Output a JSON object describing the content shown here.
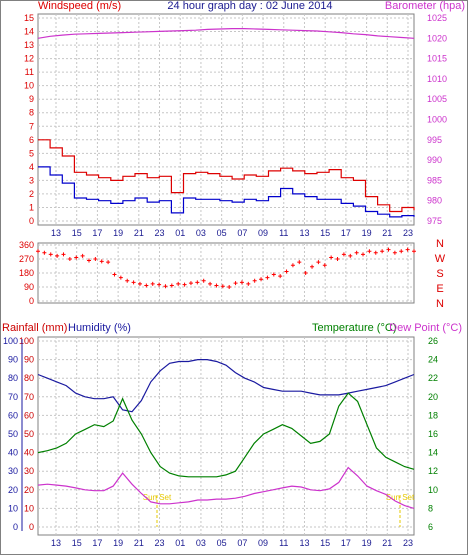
{
  "header": {
    "left_label": "Windspeed (m/s)",
    "center_label": "24 hour graph day : 02 June 2014",
    "right_label": "Barometer (hpa)"
  },
  "colors": {
    "wind": "#dd0000",
    "gust": "#dd0000",
    "avgwind": "#0000cc",
    "baro": "#cc33cc",
    "dir": "#ff0000",
    "humidity": "#1a1aa0",
    "temp": "#008000",
    "dew": "#cc33cc",
    "rain": "#cc0000",
    "grid": "#c6c6c6",
    "sun": "#e6c800"
  },
  "chart_data": [
    {
      "type": "line",
      "name": "wind-barometer",
      "title": "24 hour graph day : 02 June 2014",
      "x_ticks": [
        "13",
        "15",
        "17",
        "19",
        "21",
        "23",
        "01",
        "03",
        "05",
        "07",
        "09",
        "11",
        "13",
        "15",
        "17",
        "19",
        "21",
        "23"
      ],
      "y_left": {
        "label": "Windspeed (m/s)",
        "range": [
          0,
          15
        ],
        "ticks": [
          0,
          1,
          2,
          3,
          4,
          5,
          6,
          7,
          8,
          9,
          10,
          11,
          12,
          13,
          14,
          15
        ]
      },
      "y_right": {
        "label": "Barometer (hpa)",
        "range": [
          975,
          1025
        ],
        "ticks": [
          975,
          980,
          985,
          990,
          995,
          1000,
          1005,
          1010,
          1015,
          1020,
          1025
        ]
      },
      "series": [
        {
          "key": "gust",
          "axis": "left",
          "values": [
            6.0,
            5.4,
            4.8,
            3.6,
            3.4,
            3.2,
            3.0,
            3.3,
            3.5,
            3.2,
            3.3,
            2.1,
            3.5,
            3.6,
            3.5,
            3.3,
            3.1,
            3.4,
            3.3,
            3.7,
            3.9,
            3.7,
            3.5,
            3.6,
            3.8,
            3.2,
            3.0,
            1.8,
            1.2,
            0.7,
            1.0,
            0.8
          ]
        },
        {
          "key": "avgwind",
          "axis": "left",
          "values": [
            4.0,
            3.4,
            2.8,
            1.7,
            1.6,
            1.5,
            1.3,
            1.5,
            1.7,
            1.4,
            1.5,
            0.6,
            1.7,
            1.6,
            1.6,
            1.5,
            1.4,
            1.6,
            1.5,
            1.8,
            2.4,
            2.0,
            1.8,
            1.6,
            1.6,
            1.3,
            1.1,
            0.7,
            0.5,
            0.3,
            0.4,
            0.3
          ]
        },
        {
          "key": "baro",
          "axis": "right",
          "values": [
            1020.0,
            1020.5,
            1020.8,
            1021.0,
            1021.1,
            1021.2,
            1021.3,
            1021.4,
            1021.5,
            1021.6,
            1021.7,
            1021.8,
            1021.9,
            1022.0,
            1022.2,
            1022.3,
            1022.4,
            1022.4,
            1022.3,
            1022.2,
            1022.1,
            1022.0,
            1021.9,
            1021.8,
            1021.6,
            1021.4,
            1021.1,
            1020.9,
            1020.6,
            1020.4,
            1020.2,
            1020.0
          ]
        }
      ]
    },
    {
      "type": "scatter",
      "name": "wind-direction",
      "y_range": [
        0,
        360
      ],
      "y_ticks": [
        0,
        90,
        180,
        270,
        360
      ],
      "compass_labels": [
        "N",
        "W",
        "S",
        "E",
        "N"
      ],
      "series": [
        {
          "key": "dir",
          "values": [
            320,
            310,
            300,
            290,
            300,
            270,
            280,
            290,
            260,
            270,
            255,
            250,
            170,
            150,
            130,
            120,
            110,
            100,
            110,
            105,
            95,
            100,
            110,
            105,
            115,
            120,
            130,
            110,
            100,
            95,
            90,
            115,
            120,
            110,
            130,
            140,
            150,
            170,
            160,
            190,
            230,
            250,
            180,
            220,
            250,
            230,
            280,
            270,
            300,
            290,
            310,
            300,
            320,
            310,
            320,
            330,
            310,
            320,
            330,
            320
          ]
        }
      ]
    },
    {
      "type": "line",
      "name": "rain-humidity-temperature",
      "y_left_rain": {
        "label": "Rainfall (mm)",
        "range": [
          0,
          100
        ],
        "ticks": [
          0,
          10,
          20,
          30,
          40,
          50,
          60,
          70,
          80,
          90,
          100
        ]
      },
      "y_left_humidity": {
        "label": "Humidity (%)",
        "range": [
          0,
          100
        ],
        "ticks": [
          0,
          10,
          20,
          30,
          40,
          50,
          60,
          70,
          80,
          90,
          100
        ]
      },
      "y_right": {
        "label": "Temperature (°C)",
        "label2": "Dew Point (°C)",
        "range": [
          6,
          26
        ],
        "ticks": [
          6,
          8,
          10,
          12,
          14,
          16,
          18,
          20,
          22,
          24,
          26
        ]
      },
      "annotations": [
        "Sun Set",
        "Sun Set"
      ],
      "series": [
        {
          "key": "humidity",
          "axis": "left",
          "values": [
            82,
            80,
            78,
            76,
            72,
            70,
            69,
            69,
            70,
            63,
            62,
            68,
            78,
            84,
            88,
            89,
            89,
            90,
            90,
            89,
            87,
            83,
            80,
            78,
            75,
            74,
            73,
            73,
            73,
            72,
            71,
            71,
            71,
            72,
            73,
            74,
            75,
            76,
            78,
            80,
            82
          ]
        },
        {
          "key": "temp",
          "axis": "right",
          "values": [
            14,
            14.2,
            14.5,
            15,
            16,
            16.5,
            17,
            16.8,
            17.4,
            19.8,
            17.5,
            16,
            14,
            12.5,
            11.8,
            11.5,
            11.4,
            11.4,
            11.4,
            11.4,
            11.6,
            12,
            13.5,
            15,
            16,
            16.5,
            17,
            16.6,
            15.8,
            15,
            15.2,
            16,
            19,
            20.4,
            19.5,
            17,
            14.5,
            13.5,
            13,
            12.5,
            12.2
          ]
        },
        {
          "key": "dew",
          "axis": "right",
          "values": [
            10.5,
            10.6,
            10.5,
            10.4,
            10.2,
            10.0,
            9.9,
            9.9,
            10.4,
            11.8,
            10.6,
            9.6,
            8.7,
            8.5,
            8.5,
            8.6,
            8.7,
            8.9,
            8.9,
            9.0,
            9.0,
            9.1,
            9.3,
            9.6,
            9.8,
            10.0,
            10.2,
            10.4,
            10.3,
            10.0,
            9.9,
            10.1,
            10.8,
            12.4,
            11.5,
            10.4,
            9.9,
            9.5,
            8.8,
            8.3,
            8.0
          ]
        }
      ]
    }
  ]
}
